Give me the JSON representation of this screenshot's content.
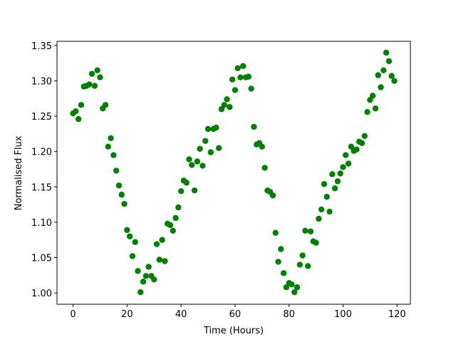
{
  "chart_data": {
    "type": "scatter",
    "xlabel": "Time (Hours)",
    "ylabel": "Normalised Flux",
    "x": [
      0,
      1,
      2,
      3,
      4,
      5,
      6,
      7,
      8,
      9,
      10,
      11,
      12,
      13,
      14,
      15,
      16,
      17,
      18,
      19,
      20,
      21,
      22,
      23,
      24,
      25,
      26,
      27,
      28,
      29,
      30,
      31,
      32,
      33,
      34,
      35,
      36,
      37,
      38,
      39,
      40,
      41,
      42,
      43,
      44,
      45,
      46,
      47,
      48,
      49,
      50,
      51,
      52,
      53,
      54,
      55,
      56,
      57,
      58,
      59,
      60,
      61,
      62,
      63,
      64,
      65,
      66,
      67,
      68,
      69,
      70,
      71,
      72,
      73,
      74,
      75,
      76,
      77,
      78,
      79,
      80,
      81,
      82,
      83,
      84,
      85,
      86,
      87,
      88,
      89,
      90,
      91,
      92,
      93,
      94,
      95,
      96,
      97,
      98,
      99,
      100,
      101,
      102,
      103,
      104,
      105,
      106,
      107,
      108,
      109,
      110,
      111,
      112,
      113,
      114,
      115,
      116,
      117,
      118,
      119
    ],
    "values": [
      1.254,
      1.257,
      1.246,
      1.266,
      1.292,
      1.293,
      1.295,
      1.31,
      1.293,
      1.315,
      1.305,
      1.261,
      1.266,
      1.207,
      1.219,
      1.195,
      1.173,
      1.152,
      1.139,
      1.126,
      1.089,
      1.08,
      1.052,
      1.072,
      1.031,
      1.001,
      1.016,
      1.024,
      1.037,
      1.024,
      1.019,
      1.069,
      1.047,
      1.075,
      1.045,
      1.098,
      1.096,
      1.088,
      1.106,
      1.121,
      1.144,
      1.159,
      1.156,
      1.189,
      1.181,
      1.145,
      1.186,
      1.204,
      1.18,
      1.215,
      1.232,
      1.199,
      1.232,
      1.234,
      1.205,
      1.26,
      1.266,
      1.274,
      1.263,
      1.302,
      1.287,
      1.318,
      1.305,
      1.321,
      1.305,
      1.306,
      1.289,
      1.235,
      1.21,
      1.212,
      1.207,
      1.177,
      1.145,
      1.143,
      1.138,
      1.085,
      1.044,
      1.062,
      1.028,
      1.008,
      1.014,
      1.012,
      1.001,
      1.008,
      1.04,
      1.053,
      1.088,
      1.038,
      1.087,
      1.073,
      1.071,
      1.105,
      1.118,
      1.154,
      1.136,
      1.115,
      1.168,
      1.148,
      1.158,
      1.169,
      1.178,
      1.195,
      1.183,
      1.207,
      1.201,
      1.203,
      1.214,
      1.212,
      1.222,
      1.256,
      1.273,
      1.279,
      1.261,
      1.308,
      1.291,
      1.315,
      1.34,
      1.328,
      1.307,
      1.3
    ],
    "color": "#008000",
    "xlim": [
      -5.95,
      124.95
    ],
    "ylim": [
      0.984,
      1.356
    ],
    "xticks": [
      0,
      20,
      40,
      60,
      80,
      100,
      120
    ],
    "yticks": [
      {
        "value": 1.0,
        "label": "1.00"
      },
      {
        "value": 1.05,
        "label": "1.05"
      },
      {
        "value": 1.1,
        "label": "1.10"
      },
      {
        "value": 1.15,
        "label": "1.15"
      },
      {
        "value": 1.2,
        "label": "1.20"
      },
      {
        "value": 1.25,
        "label": "1.25"
      },
      {
        "value": 1.3,
        "label": "1.30"
      },
      {
        "value": 1.35,
        "label": "1.35"
      }
    ]
  }
}
